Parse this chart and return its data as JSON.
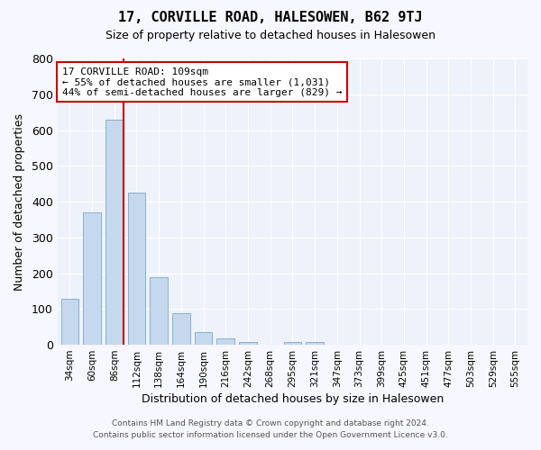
{
  "title": "17, CORVILLE ROAD, HALESOWEN, B62 9TJ",
  "subtitle": "Size of property relative to detached houses in Halesowen",
  "xlabel": "Distribution of detached houses by size in Halesowen",
  "ylabel": "Number of detached properties",
  "bar_color": "#c5d8ed",
  "bar_edge_color": "#7aaaca",
  "background_color": "#eef2fa",
  "grid_color": "#ffffff",
  "categories": [
    "34sqm",
    "60sqm",
    "86sqm",
    "112sqm",
    "138sqm",
    "164sqm",
    "190sqm",
    "216sqm",
    "242sqm",
    "268sqm",
    "295sqm",
    "321sqm",
    "347sqm",
    "373sqm",
    "399sqm",
    "425sqm",
    "451sqm",
    "477sqm",
    "503sqm",
    "529sqm",
    "555sqm"
  ],
  "values": [
    128,
    370,
    630,
    425,
    190,
    87,
    35,
    17,
    8,
    0,
    7,
    8,
    0,
    0,
    0,
    0,
    0,
    0,
    0,
    0,
    0
  ],
  "ylim": [
    0,
    800
  ],
  "yticks": [
    0,
    100,
    200,
    300,
    400,
    500,
    600,
    700,
    800
  ],
  "annotation_text_line1": "17 CORVILLE ROAD: 109sqm",
  "annotation_text_line2": "← 55% of detached houses are smaller (1,031)",
  "annotation_text_line3": "44% of semi-detached houses are larger (829) →",
  "annotation_box_color": "#ffffff",
  "annotation_box_edge": "#cc0000",
  "line_color": "#cc0000",
  "footer_line1": "Contains HM Land Registry data © Crown copyright and database right 2024.",
  "footer_line2": "Contains public sector information licensed under the Open Government Licence v3.0.",
  "fig_bg": "#f7f7ff"
}
